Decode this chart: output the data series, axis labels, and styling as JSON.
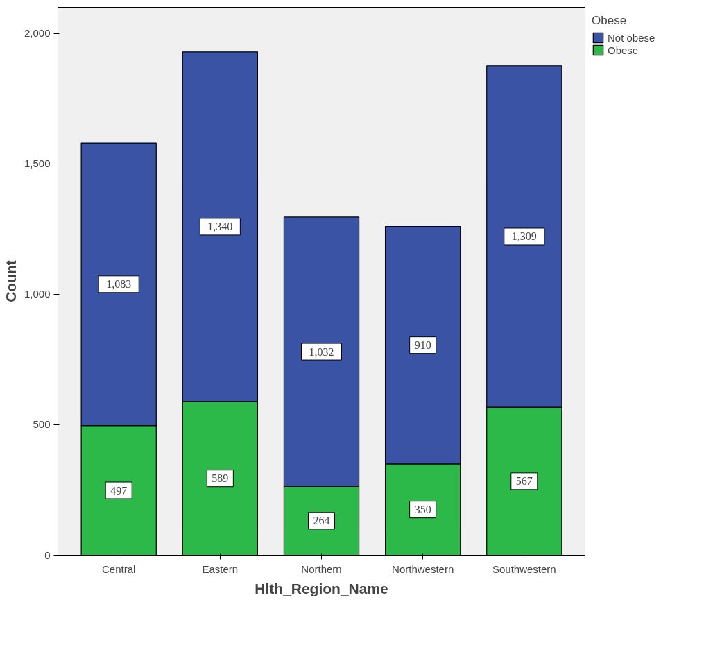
{
  "chart_data": {
    "type": "bar",
    "stacked": true,
    "xlabel": "Hlth_Region_Name",
    "ylabel": "Count",
    "legend_title": "Obese",
    "legend": "top right",
    "categories": [
      "Central",
      "Eastern",
      "Northern",
      "Northwestern",
      "Southwestern"
    ],
    "series": [
      {
        "name": "Obese",
        "color": "#2db84a",
        "values": [
          497,
          589,
          264,
          350,
          567
        ],
        "value_labels": [
          "497",
          "589",
          "264",
          "350",
          "567"
        ]
      },
      {
        "name": "Not obese",
        "color": "#3a53a4",
        "values": [
          1083,
          1340,
          1032,
          910,
          1309
        ],
        "value_labels": [
          "1,083",
          "1,340",
          "1,032",
          "910",
          "1,309"
        ]
      }
    ],
    "ylim": [
      0,
      2100
    ],
    "yticks": [
      0,
      {
        "value": 500,
        "label": "500"
      },
      {
        "value": 1000,
        "label": "1,000"
      },
      {
        "value": 1500,
        "label": "1,500"
      },
      {
        "value": 2000,
        "label": "2,000"
      }
    ],
    "grid": false
  }
}
